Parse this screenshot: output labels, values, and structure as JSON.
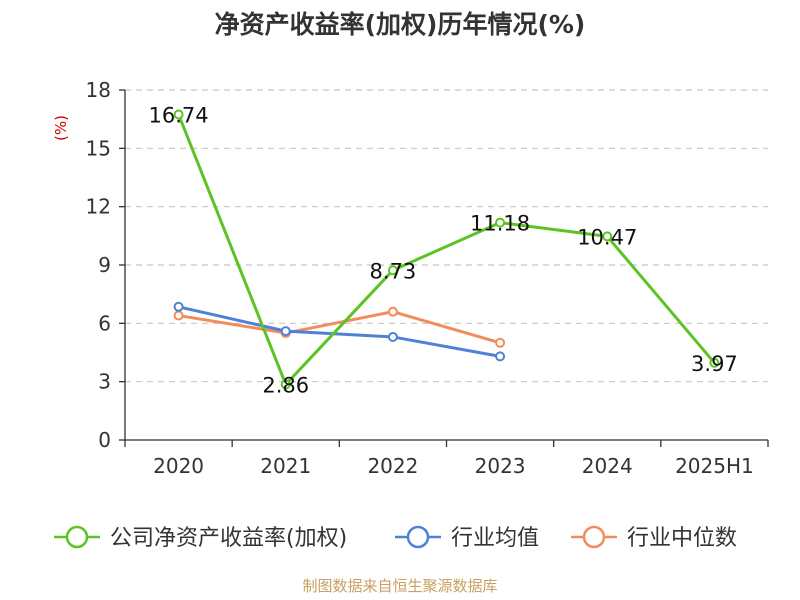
{
  "chart_data": {
    "type": "line",
    "title": "净资产收益率(加权)历年情况(%)",
    "ylabel": "(%)",
    "categories": [
      "2020",
      "2021",
      "2022",
      "2023",
      "2024",
      "2025H1"
    ],
    "ylim": [
      0,
      18
    ],
    "yticks": [
      0,
      3,
      6,
      9,
      12,
      15,
      18
    ],
    "grid": true,
    "legend_position": "bottom",
    "series": [
      {
        "name": "公司净资产收益率(加权)",
        "color": "#5cc422",
        "values": [
          16.74,
          2.86,
          8.73,
          11.18,
          10.47,
          3.97
        ],
        "labels": [
          "16.74",
          "2.86",
          "8.73",
          "11.18",
          "10.47",
          "3.97"
        ]
      },
      {
        "name": "行业均值",
        "color": "#4f81d6",
        "values": [
          6.85,
          5.6,
          5.3,
          4.3,
          null,
          null
        ]
      },
      {
        "name": "行业中位数",
        "color": "#f28c5a",
        "values": [
          6.4,
          5.5,
          6.6,
          5.0,
          null,
          null
        ]
      }
    ],
    "source": "制图数据来自恒生聚源数据库"
  }
}
